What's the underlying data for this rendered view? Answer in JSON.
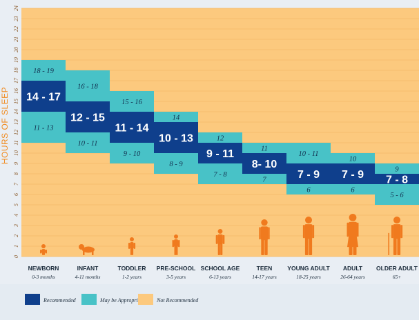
{
  "chart_data": {
    "type": "bar",
    "ylabel": "HOURS OF SLEEP",
    "ylim": [
      0,
      24
    ],
    "yticks": [
      "0",
      "1",
      "2",
      "3",
      "4",
      "5",
      "6",
      "7",
      "8",
      "9",
      "10",
      "11",
      "12",
      "13",
      "14",
      "15",
      "16",
      "17",
      "18",
      "19",
      "20",
      "21",
      "22",
      "23",
      "24"
    ],
    "grid": true,
    "legend": {
      "placement": "bottom-left",
      "entries": [
        {
          "key": "recommended",
          "label": "Recommended",
          "color": "#0f3f8c"
        },
        {
          "key": "appropriate",
          "label": "May be Appropriate",
          "color": "#48c2c7"
        },
        {
          "key": "not",
          "label": "Not Recommended",
          "color": "#fcc97e"
        }
      ]
    },
    "background_color": "#fcc97e",
    "groups": [
      {
        "name": "NEWBORN",
        "age": "0-3 months",
        "recommended": [
          14,
          17
        ],
        "recommended_label": "14 - 17",
        "appropriate": [
          11,
          19
        ],
        "upper_label": "18 - 19",
        "lower_label": "11 - 13",
        "figure": "baby-icon"
      },
      {
        "name": "INFANT",
        "age": "4-11 months",
        "recommended": [
          12,
          15
        ],
        "recommended_label": "12 - 15",
        "appropriate": [
          10,
          18
        ],
        "upper_label": "16 - 18",
        "lower_label": "10 - 11",
        "figure": "crawling-infant-icon"
      },
      {
        "name": "TODDLER",
        "age": "1-2 years",
        "recommended": [
          11,
          14
        ],
        "recommended_label": "11 - 14",
        "appropriate": [
          9,
          16
        ],
        "upper_label": "15 - 16",
        "lower_label": "9 - 10",
        "figure": "toddler-icon"
      },
      {
        "name": "PRE-SCHOOL",
        "age": "3-5 years",
        "recommended": [
          10,
          13
        ],
        "recommended_label": "10 - 13",
        "appropriate": [
          8,
          14
        ],
        "upper_label": "14",
        "lower_label": "8 - 9",
        "figure": "preschooler-icon"
      },
      {
        "name": "SCHOOL AGE",
        "age": "6-13 years",
        "recommended": [
          9,
          11
        ],
        "recommended_label": "9 - 11",
        "appropriate": [
          7,
          12
        ],
        "upper_label": "12",
        "lower_label": "7 - 8",
        "figure": "child-icon"
      },
      {
        "name": "TEEN",
        "age": "14-17 years",
        "recommended": [
          8,
          10
        ],
        "recommended_label": "8- 10",
        "appropriate": [
          7,
          11
        ],
        "upper_label": "11",
        "lower_label": "7",
        "figure": "teen-icon"
      },
      {
        "name": "YOUNG ADULT",
        "age": "18-25 years",
        "recommended": [
          7,
          9
        ],
        "recommended_label": "7 - 9",
        "appropriate": [
          6,
          11
        ],
        "upper_label": "10 - 11",
        "lower_label": "6",
        "figure": "young-adult-icon"
      },
      {
        "name": "ADULT",
        "age": "26-64 years",
        "recommended": [
          7,
          9
        ],
        "recommended_label": "7 - 9",
        "appropriate": [
          6,
          10
        ],
        "upper_label": "10",
        "lower_label": "6",
        "figure": "adult-icon"
      },
      {
        "name": "OLDER ADULT",
        "age": "65+",
        "recommended": [
          7,
          8
        ],
        "recommended_label": "7 - 8",
        "appropriate": [
          5,
          9
        ],
        "upper_label": "9",
        "lower_label": "5 - 6",
        "figure": "older-adult-icon"
      }
    ]
  }
}
